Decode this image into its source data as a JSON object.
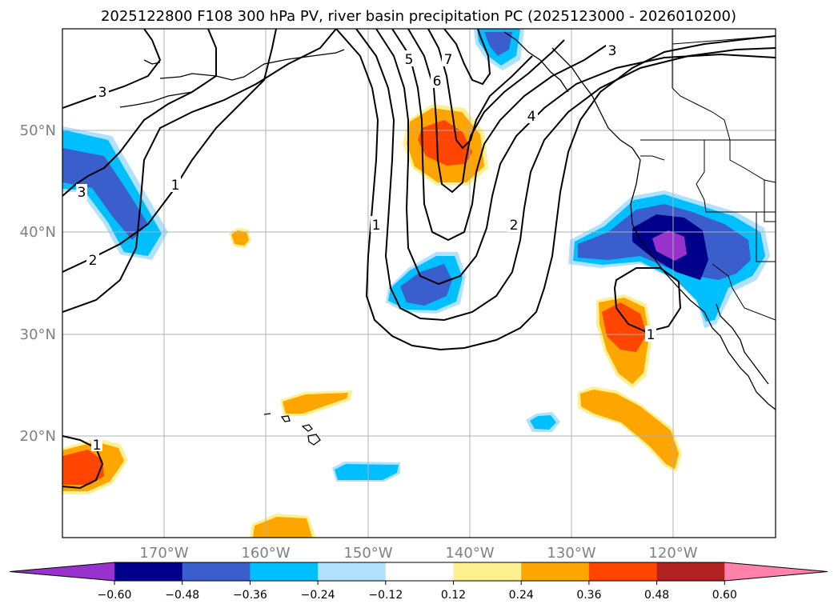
{
  "title": "2025122800 F108 300 hPa PV, river basin precipitation PC (2025123000 - 2026010200)",
  "map": {
    "lat_labels": [
      "50°N",
      "40°N",
      "30°N",
      "20°N"
    ],
    "lon_labels": [
      "170°W",
      "160°W",
      "150°W",
      "140°W",
      "130°W",
      "120°W"
    ],
    "contour_labels": [
      "3",
      "3",
      "1",
      "2",
      "1",
      "5",
      "6",
      "7",
      "4",
      "3",
      "2",
      "1",
      "1"
    ]
  },
  "colorbar": {
    "ticks": [
      "−0.60",
      "−0.48",
      "−0.36",
      "−0.24",
      "−0.12",
      "0.12",
      "0.24",
      "0.36",
      "0.48",
      "0.60"
    ],
    "colors": [
      "#9932cc",
      "#00008b",
      "#3a5fcd",
      "#00bfff",
      "#b0e2ff",
      "#ffffff",
      "#fff08f",
      "#ffa500",
      "#ff4500",
      "#b22222",
      "#ff82ab"
    ]
  },
  "legend_colors": {
    "neg_3": "#3a5fcd",
    "neg_2": "#00bfff",
    "neg_1": "#b0e2ff",
    "neg_4": "#00008b",
    "neg_5": "#9932cc",
    "pos_1": "#fff08f",
    "pos_2": "#ffa500",
    "pos_3": "#ff4500"
  }
}
